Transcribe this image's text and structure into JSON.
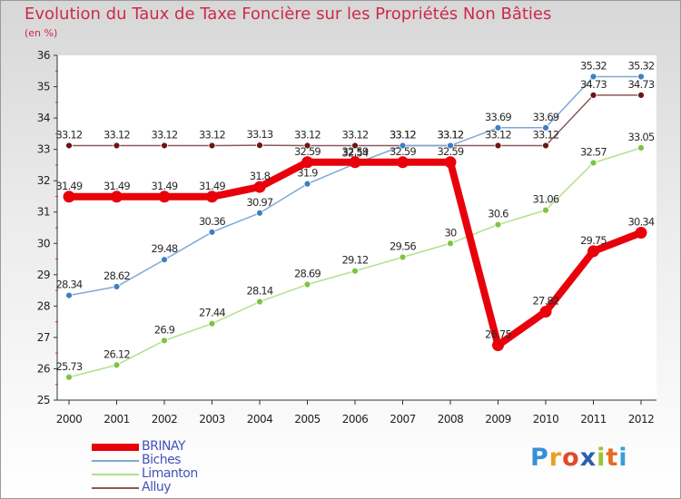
{
  "header": {
    "title": "Evolution du Taux de Taxe Foncière sur les Propriétés Non Bâties",
    "subtitle": "(en %)"
  },
  "chart_data": {
    "type": "line",
    "title": "Evolution du Taux de Taxe Foncière sur les Propriétés Non Bâties",
    "ylabel": "(en %)",
    "xlabel": "",
    "categories": [
      "2000",
      "2001",
      "2002",
      "2003",
      "2004",
      "2005",
      "2006",
      "2007",
      "2008",
      "2009",
      "2010",
      "2011",
      "2012"
    ],
    "ylim": [
      25,
      36
    ],
    "yticks": [
      25,
      26,
      27,
      28,
      29,
      30,
      31,
      32,
      33,
      34,
      35,
      36
    ],
    "grid": false,
    "legend_position": "bottom-left",
    "series": [
      {
        "name": "BRINAY",
        "color": "#e8000b",
        "marker": "#e8000b",
        "values": [
          31.49,
          31.49,
          31.49,
          31.49,
          31.8,
          32.59,
          32.59,
          32.59,
          32.59,
          26.75,
          27.82,
          29.75,
          30.34
        ],
        "labels": [
          "31.49",
          "31.49",
          "31.49",
          "31.49",
          "31.8",
          "32.59",
          "32.59",
          "32.59",
          "32.59",
          "26.75",
          "27.82",
          "29.75",
          "30.34"
        ]
      },
      {
        "name": "Biches",
        "color": "#7fa8d6",
        "marker": "#3f7fc0",
        "values": [
          28.34,
          28.62,
          29.48,
          30.36,
          30.97,
          31.9,
          32.54,
          33.12,
          33.12,
          33.69,
          33.69,
          35.32,
          35.32
        ],
        "labels": [
          "28.34",
          "28.62",
          "29.48",
          "30.36",
          "30.97",
          "31.9",
          "32.54",
          "33.12",
          "33.12",
          "33.69",
          "33.69",
          "35.32",
          "35.32"
        ]
      },
      {
        "name": "Limanton",
        "color": "#b2e08c",
        "marker": "#7cc442",
        "values": [
          25.73,
          26.12,
          26.9,
          27.44,
          28.14,
          28.69,
          29.12,
          29.56,
          30,
          30.6,
          31.06,
          32.57,
          33.05
        ],
        "labels": [
          "25.73",
          "26.12",
          "26.9",
          "27.44",
          "28.14",
          "28.69",
          "29.12",
          "29.56",
          "30",
          "30.6",
          "31.06",
          "32.57",
          "33.05"
        ]
      },
      {
        "name": "Alluy",
        "color": "#8a5a5a",
        "marker": "#6e1414",
        "values": [
          33.12,
          33.12,
          33.12,
          33.12,
          33.13,
          33.12,
          33.12,
          33.12,
          33.12,
          33.12,
          33.12,
          34.73,
          34.73
        ],
        "labels": [
          "33.12",
          "33.12",
          "33.12",
          "33.12",
          "33.13",
          "33.12",
          "33.12",
          "33.12",
          "33.12",
          "33.12",
          "33.12",
          "34.73",
          "34.73"
        ]
      }
    ]
  },
  "legend": {
    "items": [
      {
        "label": "BRINAY",
        "color": "#e8000b"
      },
      {
        "label": "Biches",
        "color": "#7fa8d6"
      },
      {
        "label": "Limanton",
        "color": "#b2e08c"
      },
      {
        "label": "Alluy",
        "color": "#8a5a5a"
      }
    ]
  },
  "logo": {
    "text": "Proxiti",
    "letters": [
      "P",
      "r",
      "o",
      "x",
      "i",
      "t",
      "i"
    ],
    "colors": [
      "#3a8fd6",
      "#e8a020",
      "#e04a2a",
      "#2a5fb0",
      "#9ac43a",
      "#e86a20",
      "#3aa0d6"
    ]
  }
}
